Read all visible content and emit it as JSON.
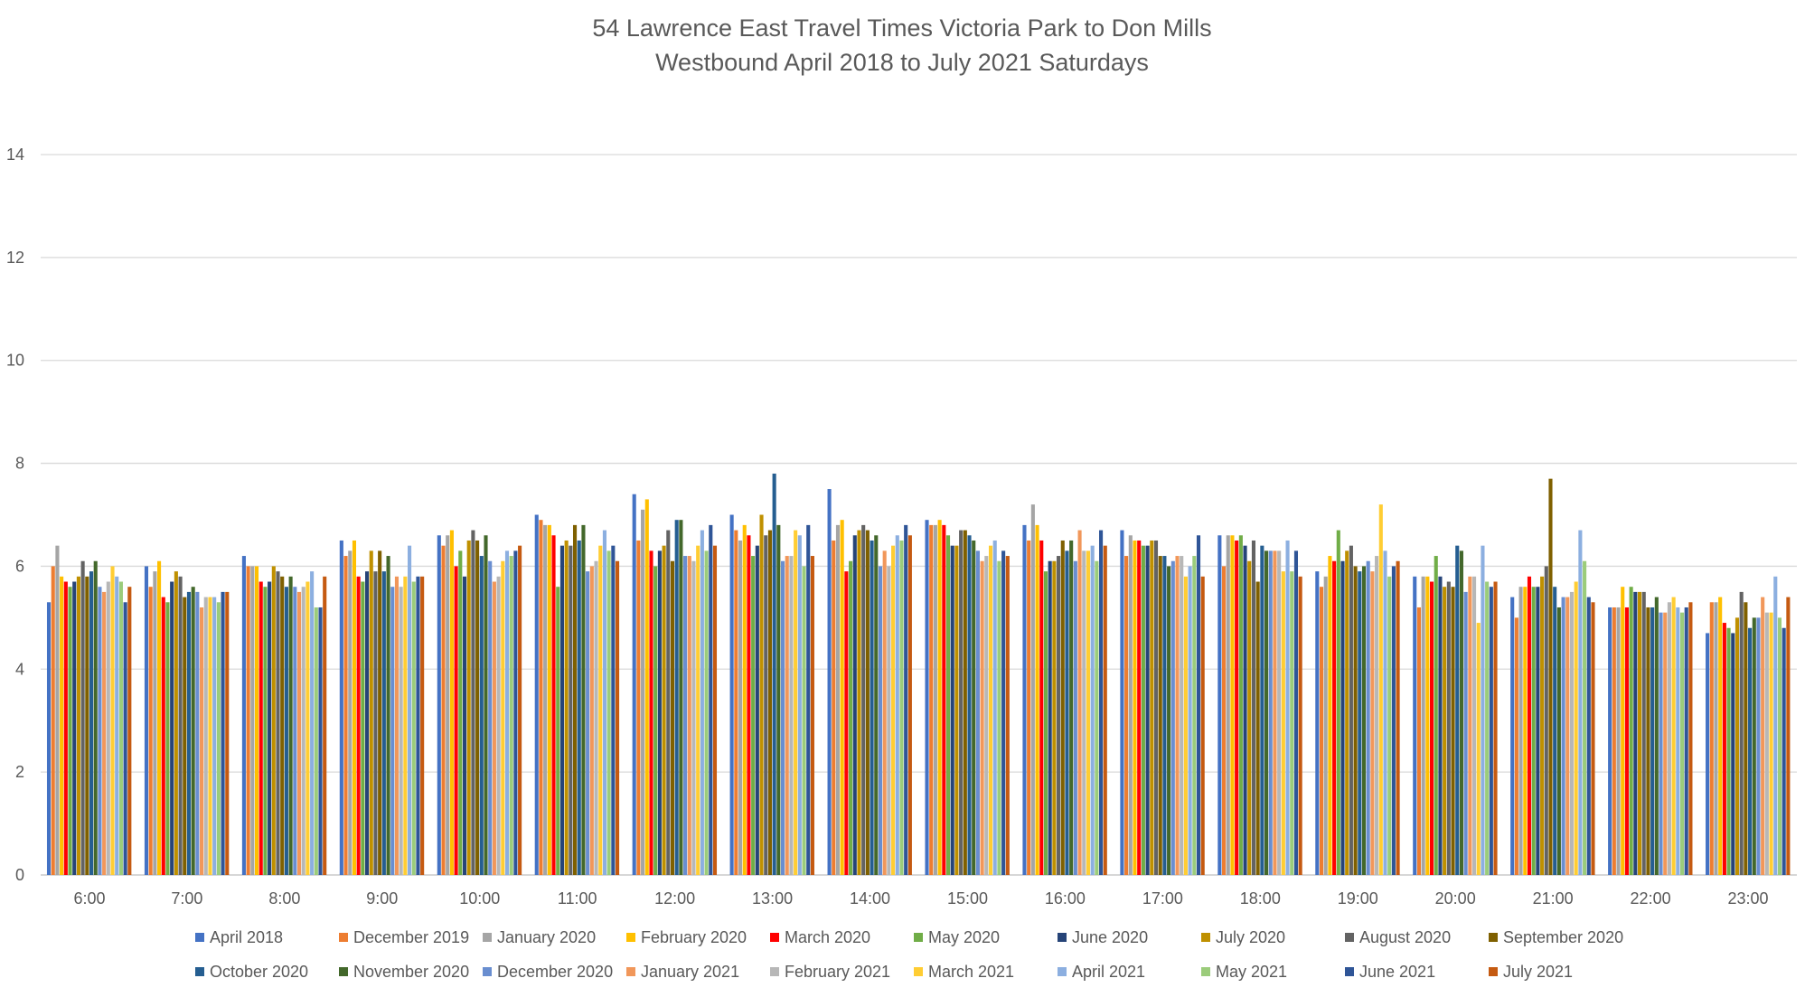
{
  "chart_data": {
    "type": "bar",
    "title": "54 Lawrence East Travel Times Victoria Park to Don Mills",
    "subtitle": "Westbound April 2018 to July 2021 Saturdays",
    "xlabel": "",
    "ylabel": "",
    "ylim": [
      0,
      14
    ],
    "yticks": [
      0,
      2,
      4,
      6,
      8,
      10,
      12,
      14
    ],
    "grid": true,
    "legend_position": "bottom",
    "categories": [
      "6:00",
      "7:00",
      "8:00",
      "9:00",
      "10:00",
      "11:00",
      "12:00",
      "13:00",
      "14:00",
      "15:00",
      "16:00",
      "17:00",
      "18:00",
      "19:00",
      "20:00",
      "21:00",
      "22:00",
      "23:00"
    ],
    "series": [
      {
        "name": "April 2018",
        "color": "#4472C4",
        "values": [
          5.3,
          6.0,
          6.2,
          6.5,
          6.6,
          7.0,
          7.4,
          7.0,
          7.5,
          6.9,
          6.8,
          6.7,
          6.6,
          5.9,
          5.8,
          5.4,
          5.2,
          4.7
        ]
      },
      {
        "name": "December 2019",
        "color": "#ED7D31",
        "values": [
          6.0,
          5.6,
          6.0,
          6.2,
          6.4,
          6.9,
          6.5,
          6.7,
          6.5,
          6.8,
          6.5,
          6.2,
          6.0,
          5.6,
          5.2,
          5.0,
          5.2,
          5.3
        ]
      },
      {
        "name": "January 2020",
        "color": "#A5A5A5",
        "values": [
          6.4,
          5.9,
          6.0,
          6.3,
          6.6,
          6.8,
          7.1,
          6.5,
          6.8,
          6.8,
          7.2,
          6.6,
          6.6,
          5.8,
          5.8,
          5.6,
          5.2,
          5.3
        ]
      },
      {
        "name": "February 2020",
        "color": "#FFC000",
        "values": [
          5.8,
          6.1,
          6.0,
          6.5,
          6.7,
          6.8,
          7.3,
          6.8,
          6.9,
          6.9,
          6.8,
          6.5,
          6.6,
          6.2,
          5.8,
          5.6,
          5.6,
          5.4
        ]
      },
      {
        "name": "March 2020",
        "color": "#FF0000",
        "values": [
          5.7,
          5.4,
          5.7,
          5.8,
          6.0,
          6.6,
          6.3,
          6.6,
          5.9,
          6.8,
          6.5,
          6.5,
          6.5,
          6.1,
          5.7,
          5.8,
          5.2,
          4.9
        ]
      },
      {
        "name": "May 2020",
        "color": "#70AD47",
        "values": [
          5.6,
          5.3,
          5.6,
          5.7,
          6.3,
          5.6,
          6.0,
          6.2,
          6.1,
          6.6,
          5.9,
          6.4,
          6.6,
          6.7,
          6.2,
          5.6,
          5.6,
          4.8
        ]
      },
      {
        "name": "June 2020",
        "color": "#264478",
        "values": [
          5.7,
          5.7,
          5.7,
          5.9,
          5.8,
          6.4,
          6.3,
          6.4,
          6.6,
          6.4,
          6.1,
          6.4,
          6.4,
          6.1,
          5.8,
          5.6,
          5.5,
          4.7
        ]
      },
      {
        "name": "July 2020",
        "color": "#BF9000",
        "values": [
          5.8,
          5.9,
          6.0,
          6.3,
          6.5,
          6.5,
          6.4,
          7.0,
          6.7,
          6.4,
          6.1,
          6.5,
          6.1,
          6.3,
          5.6,
          5.8,
          5.5,
          5.0
        ]
      },
      {
        "name": "August 2020",
        "color": "#636363",
        "values": [
          6.1,
          5.8,
          5.9,
          5.9,
          6.7,
          6.4,
          6.7,
          6.6,
          6.8,
          6.7,
          6.2,
          6.5,
          6.5,
          6.4,
          5.7,
          6.0,
          5.5,
          5.5
        ]
      },
      {
        "name": "September 2020",
        "color": "#7F6000",
        "values": [
          5.8,
          5.4,
          5.8,
          6.3,
          6.5,
          6.8,
          6.1,
          6.7,
          6.7,
          6.7,
          6.5,
          6.2,
          5.7,
          6.0,
          5.6,
          7.7,
          5.2,
          5.3
        ]
      },
      {
        "name": "October 2020",
        "color": "#255E91",
        "values": [
          5.9,
          5.5,
          5.6,
          5.9,
          6.2,
          6.5,
          6.9,
          7.8,
          6.5,
          6.6,
          6.3,
          6.2,
          6.4,
          5.9,
          6.4,
          5.6,
          5.2,
          4.8
        ]
      },
      {
        "name": "November 2020",
        "color": "#43682B",
        "values": [
          6.1,
          5.6,
          5.8,
          6.2,
          6.6,
          6.8,
          6.9,
          6.8,
          6.6,
          6.5,
          6.5,
          6.0,
          6.3,
          6.0,
          6.3,
          5.2,
          5.4,
          5.0
        ]
      },
      {
        "name": "December 2020",
        "color": "#698ED0",
        "values": [
          5.6,
          5.5,
          5.6,
          5.6,
          6.1,
          5.9,
          6.2,
          6.1,
          6.0,
          6.3,
          6.1,
          6.1,
          6.3,
          6.1,
          5.5,
          5.4,
          5.1,
          5.0
        ]
      },
      {
        "name": "January 2021",
        "color": "#F1975A",
        "values": [
          5.5,
          5.2,
          5.5,
          5.8,
          5.7,
          6.0,
          6.2,
          6.2,
          6.3,
          6.1,
          6.7,
          6.2,
          6.3,
          5.9,
          5.8,
          5.4,
          5.1,
          5.4
        ]
      },
      {
        "name": "February 2021",
        "color": "#B7B7B7",
        "values": [
          5.7,
          5.4,
          5.6,
          5.6,
          5.8,
          6.1,
          6.1,
          6.2,
          6.0,
          6.2,
          6.3,
          6.2,
          6.3,
          6.2,
          5.8,
          5.5,
          5.3,
          5.1
        ]
      },
      {
        "name": "March 2021",
        "color": "#FFCD33",
        "values": [
          6.0,
          5.4,
          5.7,
          5.8,
          6.1,
          6.4,
          6.4,
          6.7,
          6.4,
          6.4,
          6.3,
          5.8,
          5.9,
          7.2,
          4.9,
          5.7,
          5.4,
          5.1
        ]
      },
      {
        "name": "April 2021",
        "color": "#8CAFE0",
        "values": [
          5.8,
          5.4,
          5.9,
          6.4,
          6.3,
          6.7,
          6.7,
          6.6,
          6.6,
          6.5,
          6.4,
          6.0,
          6.5,
          6.3,
          6.4,
          6.7,
          5.2,
          5.8
        ]
      },
      {
        "name": "May 2021",
        "color": "#9BCC7B",
        "values": [
          5.7,
          5.3,
          5.2,
          5.7,
          6.2,
          6.3,
          6.3,
          6.0,
          6.5,
          6.1,
          6.1,
          6.2,
          5.9,
          5.8,
          5.7,
          6.1,
          5.1,
          5.0
        ]
      },
      {
        "name": "June 2021",
        "color": "#2F5597",
        "values": [
          5.3,
          5.5,
          5.2,
          5.8,
          6.3,
          6.4,
          6.8,
          6.8,
          6.8,
          6.3,
          6.7,
          6.6,
          6.3,
          6.0,
          5.6,
          5.4,
          5.2,
          4.8
        ]
      },
      {
        "name": "July 2021",
        "color": "#C55A11",
        "values": [
          5.6,
          5.5,
          5.8,
          5.8,
          6.4,
          6.1,
          6.4,
          6.2,
          6.6,
          6.2,
          6.4,
          5.8,
          5.8,
          6.1,
          5.7,
          5.3,
          5.3,
          5.4
        ]
      }
    ]
  }
}
